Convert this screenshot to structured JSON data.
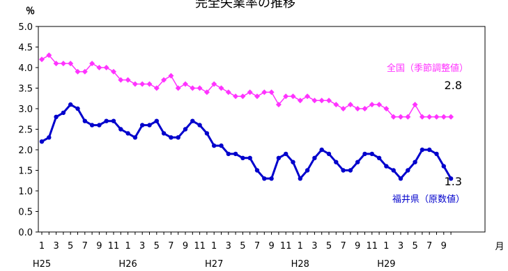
{
  "chart_data": {
    "type": "line",
    "title": "完全失業率の推移",
    "ylabel": "％",
    "xlabel": "月",
    "ylim": [
      0,
      5
    ],
    "yticks": [
      "0.0",
      "0.5",
      "1.0",
      "1.5",
      "2.0",
      "2.5",
      "3.0",
      "3.5",
      "4.0",
      "4.5",
      "5.0"
    ],
    "x_month_labels": [
      "1",
      "3",
      "5",
      "7",
      "9",
      "11",
      "1",
      "3",
      "5",
      "7",
      "9",
      "11",
      "1",
      "3",
      "5",
      "7",
      "9",
      "11",
      "1",
      "3",
      "5",
      "7",
      "9",
      "11",
      "1",
      "3",
      "5",
      "7",
      "9"
    ],
    "x_year_labels": [
      {
        "label": "H25",
        "index": 0
      },
      {
        "label": "H26",
        "index": 12
      },
      {
        "label": "H27",
        "index": 24
      },
      {
        "label": "H28",
        "index": 36
      },
      {
        "label": "H29",
        "index": 48
      }
    ],
    "series": [
      {
        "name": "全国（季節調整値）",
        "color": "#ff33ff",
        "marker": "diamond",
        "end_label": "2.8",
        "values": [
          4.2,
          4.3,
          4.1,
          4.1,
          4.1,
          3.9,
          3.9,
          4.1,
          4.0,
          4.0,
          3.9,
          3.7,
          3.7,
          3.6,
          3.6,
          3.6,
          3.5,
          3.7,
          3.8,
          3.5,
          3.6,
          3.5,
          3.5,
          3.4,
          3.6,
          3.5,
          3.4,
          3.3,
          3.3,
          3.4,
          3.3,
          3.4,
          3.4,
          3.1,
          3.3,
          3.3,
          3.2,
          3.3,
          3.2,
          3.2,
          3.2,
          3.1,
          3.0,
          3.1,
          3.0,
          3.0,
          3.1,
          3.1,
          3.0,
          2.8,
          2.8,
          2.8,
          3.1,
          2.8,
          2.8,
          2.8,
          2.8,
          2.8
        ]
      },
      {
        "name": "福井県（原数値）",
        "color": "#0000cc",
        "marker": "circle",
        "end_label": "1.3",
        "values": [
          2.2,
          2.3,
          2.8,
          2.9,
          3.1,
          3.0,
          2.7,
          2.6,
          2.6,
          2.7,
          2.7,
          2.5,
          2.4,
          2.3,
          2.6,
          2.6,
          2.7,
          2.4,
          2.3,
          2.3,
          2.5,
          2.7,
          2.6,
          2.4,
          2.1,
          2.1,
          1.9,
          1.9,
          1.8,
          1.8,
          1.5,
          1.3,
          1.3,
          1.8,
          1.9,
          1.7,
          1.3,
          1.5,
          1.8,
          2.0,
          1.9,
          1.7,
          1.5,
          1.5,
          1.7,
          1.9,
          1.9,
          1.8,
          1.6,
          1.5,
          1.3,
          1.5,
          1.7,
          2.0,
          2.0,
          1.9,
          1.6,
          1.3
        ]
      }
    ]
  }
}
